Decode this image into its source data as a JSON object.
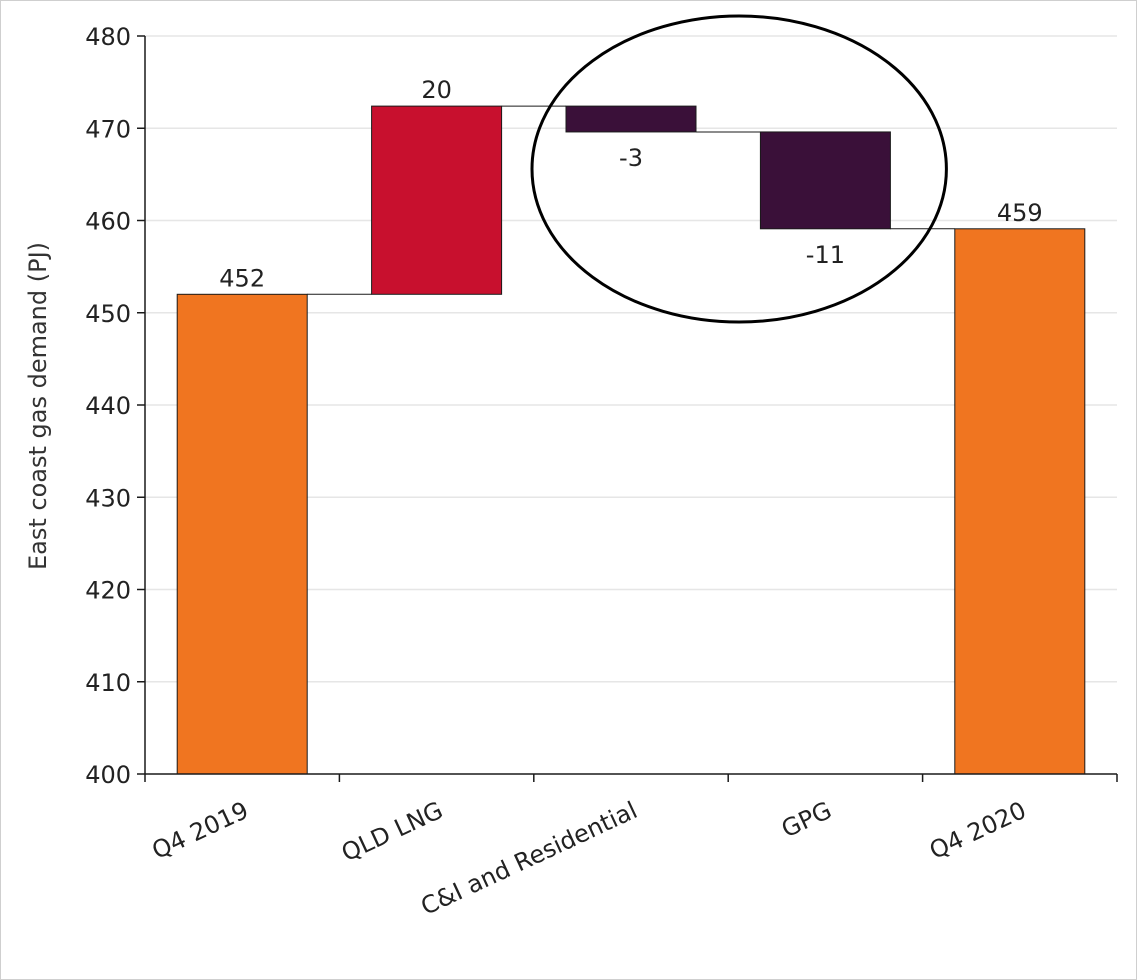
{
  "chart_data": {
    "type": "bar",
    "subtype": "waterfall",
    "title": "",
    "xlabel": "",
    "ylabel": "East coast gas demand (PJ)",
    "ylim": [
      400,
      480
    ],
    "yticks": [
      400,
      410,
      420,
      430,
      440,
      450,
      460,
      470,
      480
    ],
    "grid": true,
    "categories": [
      "Q4 2019",
      "QLD LNG",
      "C&I and Residential",
      "GPG",
      "Q4 2020"
    ],
    "bars": [
      {
        "category": "Q4 2019",
        "kind": "total",
        "start": 400,
        "end": 452,
        "label": "452",
        "color": "#f07520"
      },
      {
        "category": "QLD LNG",
        "kind": "increase",
        "start": 452,
        "end": 472.4,
        "label": "20",
        "color": "#c8102e"
      },
      {
        "category": "C&I and Residential",
        "kind": "decrease",
        "start": 472.4,
        "end": 469.6,
        "label": "-3",
        "color": "#3a1039"
      },
      {
        "category": "GPG",
        "kind": "decrease",
        "start": 469.6,
        "end": 459.1,
        "label": "-11",
        "color": "#3a1039"
      },
      {
        "category": "Q4 2020",
        "kind": "total",
        "start": 400,
        "end": 459.1,
        "label": "459",
        "color": "#f07520"
      }
    ],
    "highlight": {
      "shape": "ellipse",
      "encloses": [
        "C&I and Residential",
        "GPG"
      ],
      "color": "#000000"
    }
  }
}
